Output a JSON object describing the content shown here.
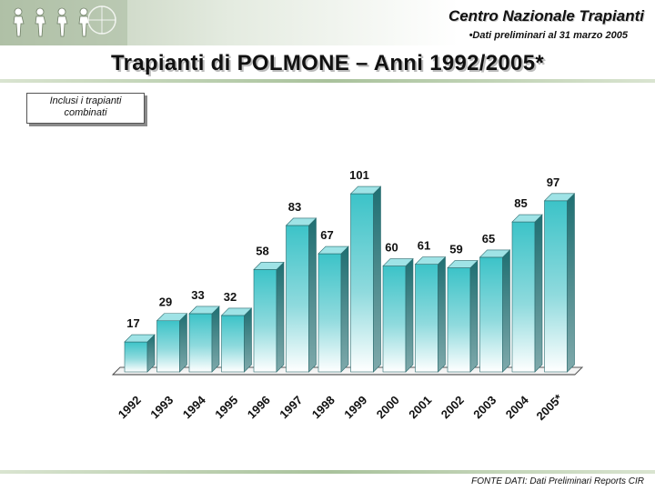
{
  "header": {
    "organization": "Centro Nazionale Trapianti",
    "note": "•Dati preliminari al 31 marzo 2005"
  },
  "main_title": "Trapianti di POLMONE – Anni 1992/2005*",
  "note_box": "Inclusi i trapianti combinati",
  "source": "FONTE DATI: Dati Preliminari Reports CIR",
  "colors": {
    "bar_front": "#3cc3c8",
    "bar_side": "#1f6f72",
    "bar_top": "#9fe3e6",
    "header_band": "#b9c8b0"
  },
  "logo_icon": "people-figures-icon",
  "chart_data": {
    "type": "bar",
    "categories": [
      "1992",
      "1993",
      "1994",
      "1995",
      "1996",
      "1997",
      "1998",
      "1999",
      "2000",
      "2001",
      "2002",
      "2003",
      "2004",
      "2005*"
    ],
    "values": [
      17,
      29,
      33,
      32,
      58,
      83,
      67,
      101,
      60,
      61,
      59,
      65,
      85,
      97
    ],
    "title": "Trapianti di POLMONE – Anni 1992/2005*",
    "xlabel": "",
    "ylabel": "",
    "ylim": [
      0,
      110
    ],
    "grid": false,
    "data_labels": true,
    "style": "3d-columns"
  }
}
